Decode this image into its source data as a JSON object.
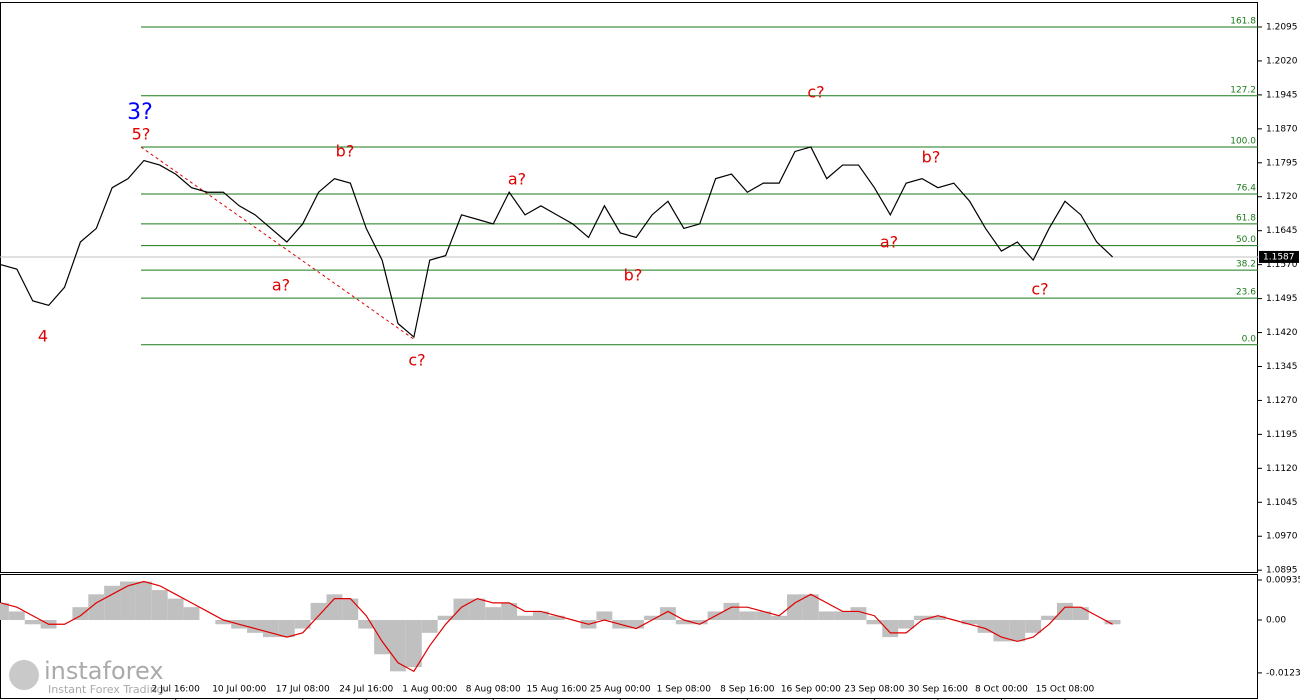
{
  "chart_data": [
    {
      "type": "line",
      "color": "#000000",
      "categories": [
        null,
        null,
        null,
        null,
        null,
        null,
        null,
        null,
        null,
        null,
        null,
        "2 Jul 16:00",
        null,
        null,
        null,
        "10 Jul 00:00",
        null,
        null,
        null,
        "17 Jul 08:00",
        null,
        null,
        null,
        "24 Jul 16:00",
        null,
        null,
        null,
        "1 Aug 00:00",
        null,
        null,
        null,
        "8 Aug 08:00",
        null,
        null,
        null,
        "15 Aug 16:00",
        null,
        null,
        null,
        "25 Aug 00:00",
        null,
        null,
        null,
        "1 Sep 08:00",
        null,
        null,
        null,
        "8 Sep 16:00",
        null,
        null,
        null,
        "16 Sep 00:00",
        null,
        null,
        null,
        "23 Sep 08:00",
        null,
        null,
        null,
        "30 Sep 16:00",
        null,
        null,
        null,
        "8 Oct 00:00",
        null,
        null,
        null,
        "15 Oct 08:00",
        null,
        null,
        null
      ],
      "values": [
        1.157,
        1.156,
        1.149,
        1.148,
        1.152,
        1.162,
        1.165,
        1.174,
        1.176,
        1.18,
        1.179,
        1.177,
        1.174,
        1.173,
        1.173,
        1.17,
        1.168,
        1.165,
        1.162,
        1.166,
        1.173,
        1.176,
        1.175,
        1.165,
        1.158,
        1.144,
        1.141,
        1.158,
        1.159,
        1.168,
        1.167,
        1.166,
        1.173,
        1.168,
        1.17,
        1.168,
        1.166,
        1.163,
        1.17,
        1.164,
        1.163,
        1.168,
        1.171,
        1.165,
        1.166,
        1.176,
        1.177,
        1.173,
        1.175,
        1.175,
        1.182,
        1.183,
        1.176,
        1.179,
        1.179,
        1.174,
        1.168,
        1.175,
        1.176,
        1.174,
        1.175,
        1.171,
        1.165,
        1.16,
        1.162,
        1.158,
        1.165,
        1.171,
        1.168,
        1.162,
        1.1587
      ],
      "ylim": [
        1.0891,
        1.2148
      ],
      "yticks": [
        1.2095,
        {
          "value": 1.202,
          "label": "1.2020"
        },
        1.1945,
        {
          "value": 1.187,
          "label": "1.1870"
        },
        1.1795,
        {
          "value": 1.172,
          "label": "1.1720"
        },
        1.1645,
        {
          "value": 1.157,
          "label": "1.1570"
        },
        1.1495,
        {
          "value": 1.142,
          "label": "1.1420"
        },
        1.1345,
        {
          "value": 1.127,
          "label": "1.1270"
        },
        1.1195,
        {
          "value": 1.112,
          "label": "1.1120"
        },
        1.1045,
        {
          "value": 1.097,
          "label": "1.0970"
        },
        1.0895
      ],
      "last_price": 1.1587,
      "fib_color": "#1a7a1a",
      "fib_levels": [
        {
          "label": "161.8",
          "price": 1.2095
        },
        {
          "label": "127.2",
          "price": 1.1943
        },
        {
          "label": "100.0",
          "price": 1.183
        },
        {
          "label": "76.4",
          "price": 1.1726
        },
        {
          "label": "61.8",
          "price": 1.166
        },
        {
          "label": "50.0",
          "price": 1.1612
        },
        {
          "label": "38.2",
          "price": 1.1558
        },
        {
          "label": "23.6",
          "price": 1.1496
        },
        {
          "label": "0.0",
          "price": 1.1393
        }
      ],
      "annotations": [
        {
          "text": "3?",
          "color": "#0000ff"
        },
        {
          "text": "5?",
          "color": "#e00000"
        },
        {
          "text": "4",
          "color": "#e00000"
        },
        {
          "text": "a?",
          "color": "#e00000"
        },
        {
          "text": "b?",
          "color": "#e00000"
        },
        {
          "text": "c?",
          "color": "#e00000"
        },
        {
          "text": "a?",
          "color": "#e00000"
        },
        {
          "text": "b?",
          "color": "#e00000"
        },
        {
          "text": "c?",
          "color": "#e00000"
        },
        {
          "text": "a?",
          "color": "#e00000"
        },
        {
          "text": "b?",
          "color": "#e00000"
        },
        {
          "text": "c?",
          "color": "#e00000"
        }
      ]
    },
    {
      "type": "macd",
      "ylim": [
        -0.01823,
        0.01052
      ],
      "yticks": [
        0.00935,
        {
          "value": 0,
          "label": "0.00"
        },
        -0.01236
      ],
      "series": [
        {
          "type": "bar",
          "color": "#c0c0c0",
          "values": [
            0.004,
            0.002,
            -0.001,
            -0.002,
            0,
            0.003,
            0.006,
            0.008,
            0.009,
            0.009,
            0.007,
            0.005,
            0.003,
            0,
            -0.001,
            -0.002,
            -0.003,
            -0.004,
            -0.004,
            -0.002,
            0.004,
            0.006,
            0.005,
            -0.002,
            -0.008,
            -0.012,
            -0.011,
            -0.003,
            0.001,
            0.005,
            0.005,
            0.003,
            0.004,
            0.001,
            0.002,
            0.001,
            0,
            -0.002,
            0.002,
            -0.002,
            -0.002,
            0.001,
            0.003,
            -0.001,
            -0.001,
            0.002,
            0.004,
            0.002,
            0.002,
            0.001,
            0.006,
            0.006,
            0.002,
            0.002,
            0.003,
            -0.001,
            -0.004,
            -0.002,
            0.001,
            0.001,
            0,
            -0.001,
            -0.003,
            -0.005,
            -0.005,
            -0.003,
            0.001,
            0.004,
            0.003,
            0,
            -0.001
          ]
        },
        {
          "type": "line",
          "color": "#e00000",
          "values": [
            0.004,
            0.003,
            0.001,
            -0.001,
            -0.001,
            0.001,
            0.004,
            0.006,
            0.008,
            0.009,
            0.008,
            0.006,
            0.004,
            0.002,
            0,
            -0.001,
            -0.002,
            -0.003,
            -0.004,
            -0.003,
            0.001,
            0.005,
            0.005,
            0.001,
            -0.005,
            -0.01,
            -0.012,
            -0.006,
            -0.001,
            0.003,
            0.005,
            0.004,
            0.004,
            0.002,
            0.002,
            0.001,
            0,
            -0.001,
            0,
            -0.001,
            -0.002,
            0,
            0.002,
            0,
            -0.001,
            0.001,
            0.003,
            0.003,
            0.002,
            0.001,
            0.004,
            0.006,
            0.004,
            0.002,
            0.002,
            0.001,
            -0.003,
            -0.003,
            0,
            0.001,
            0,
            -0.001,
            -0.002,
            -0.004,
            -0.005,
            -0.004,
            -0.001,
            0.003,
            0.003,
            0.001,
            -0.001
          ]
        }
      ]
    }
  ],
  "watermark": {
    "brand": "instaforex",
    "tagline": "Instant Forex Trading"
  }
}
